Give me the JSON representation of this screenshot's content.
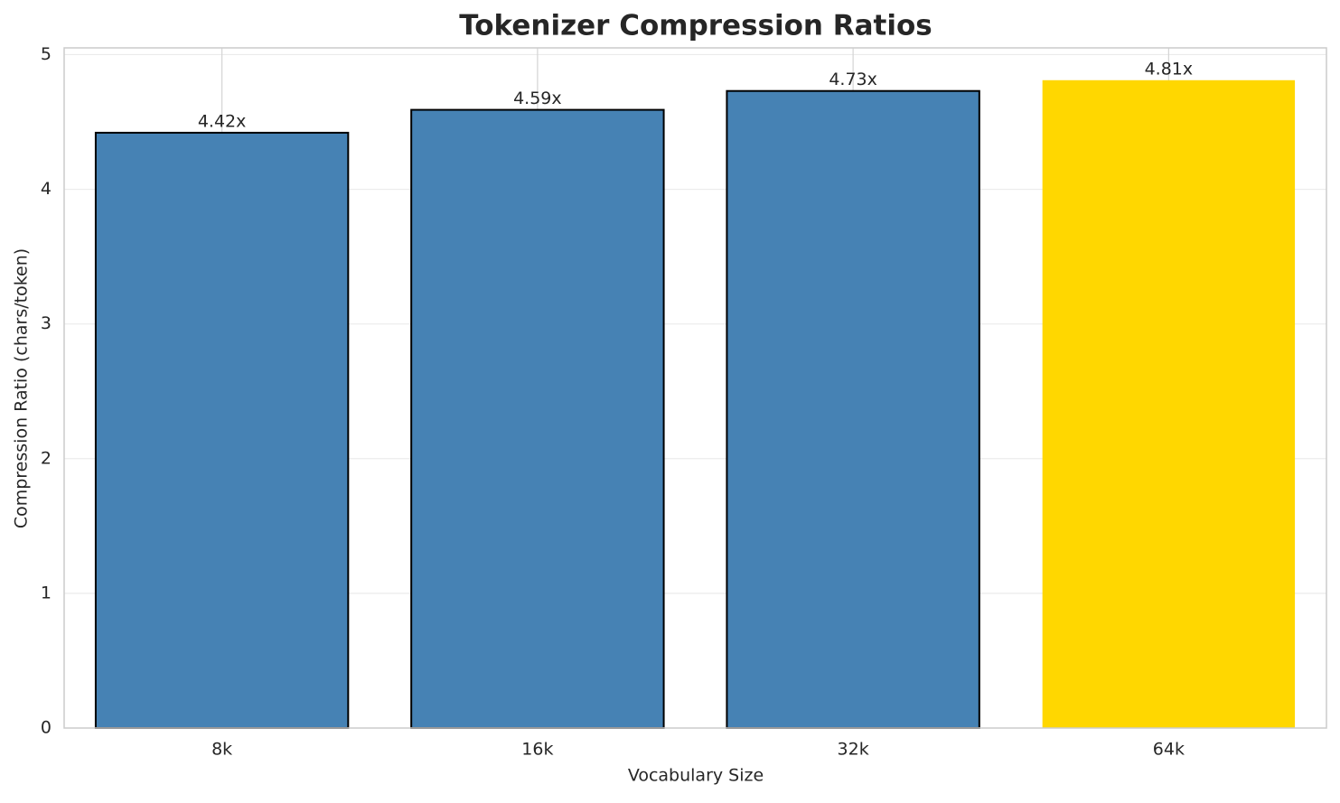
{
  "chart_data": {
    "type": "bar",
    "title": "Tokenizer Compression Ratios",
    "x_label": "Vocabulary Size",
    "y_label": "Compression Ratio (chars/token)",
    "categories": [
      "8k",
      "16k",
      "32k",
      "64k"
    ],
    "values": [
      4.42,
      4.59,
      4.73,
      4.81
    ],
    "value_labels": [
      "4.42x",
      "4.59x",
      "4.73x",
      "4.81x"
    ],
    "colors": [
      "#4682b4",
      "#4682b4",
      "#4682b4",
      "#ffd700"
    ],
    "edgecolors": [
      "#000000",
      "#000000",
      "#000000",
      "none"
    ],
    "ylim": [
      0,
      5.05
    ],
    "yticks": [
      0,
      1,
      2,
      3,
      4,
      5
    ],
    "grid": true
  }
}
